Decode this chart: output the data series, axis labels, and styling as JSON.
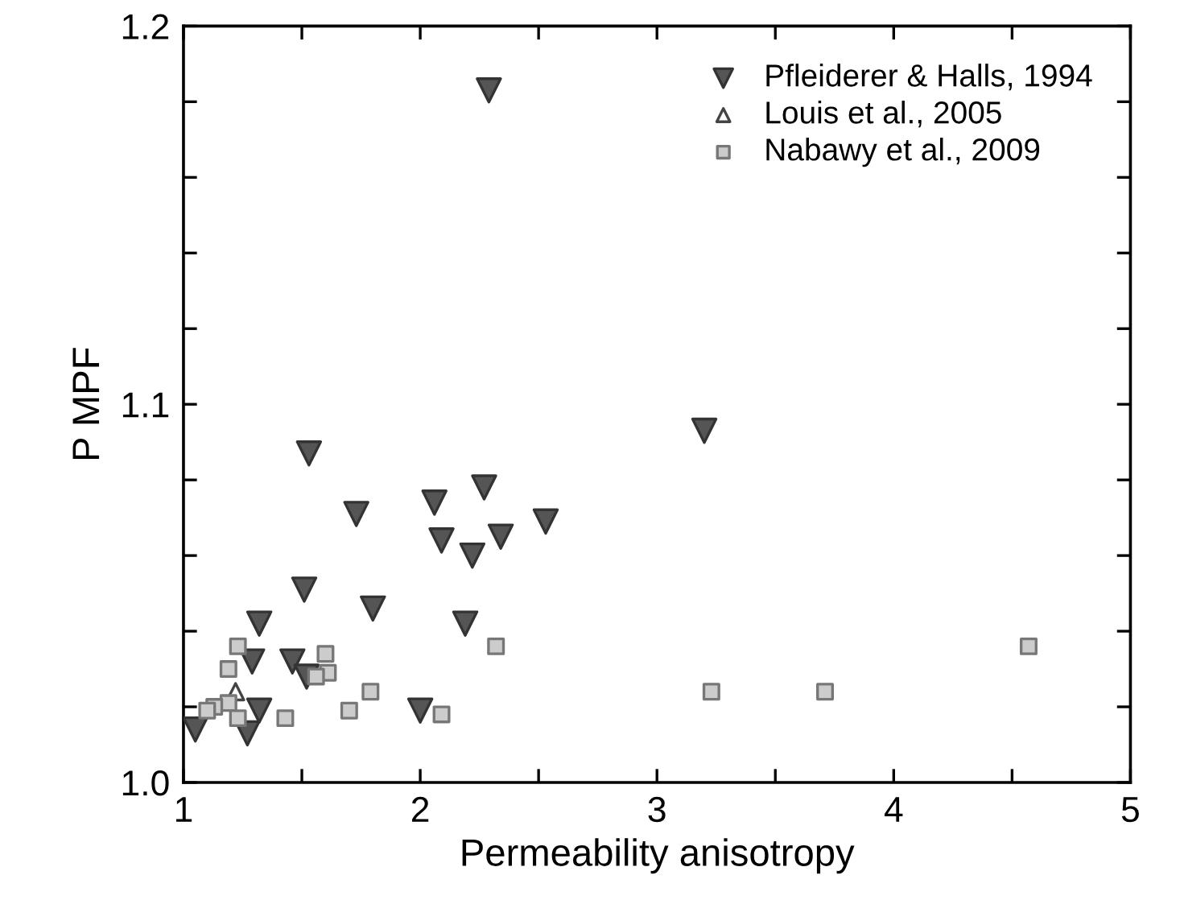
{
  "chart_data": {
    "type": "scatter",
    "xlabel": "Permeability anisotropy",
    "ylabel": "P MPF",
    "xlim": [
      1,
      5
    ],
    "ylim": [
      1.0,
      1.2
    ],
    "xticks": [
      1,
      {
        "value": 1.5,
        "label": null
      },
      2,
      {
        "value": 2.5,
        "label": null
      },
      3,
      {
        "value": 3.5,
        "label": null
      },
      4,
      {
        "value": 4.5,
        "label": null
      },
      5
    ],
    "yticks": [
      {
        "value": 1.0,
        "label": "1.0"
      },
      {
        "value": 1.02,
        "label": null
      },
      {
        "value": 1.04,
        "label": null
      },
      {
        "value": 1.06,
        "label": null
      },
      {
        "value": 1.08,
        "label": null
      },
      {
        "value": 1.1,
        "label": "1.1"
      },
      {
        "value": 1.12,
        "label": null
      },
      {
        "value": 1.14,
        "label": null
      },
      {
        "value": 1.16,
        "label": null
      },
      {
        "value": 1.18,
        "label": null
      },
      {
        "value": 1.2,
        "label": "1.2"
      }
    ],
    "grid": false,
    "legend": "top right",
    "series": [
      {
        "name": "Pfleiderer & Halls, 1994",
        "color": "#555555",
        "marker": "triangle_down",
        "x": [
          2.29,
          3.2,
          1.53,
          1.73,
          2.06,
          2.27,
          2.09,
          2.34,
          2.53,
          2.22,
          1.51,
          1.8,
          1.32,
          2.19,
          1.29,
          1.46,
          1.52,
          1.32,
          2.0,
          1.05,
          1.27
        ],
        "values": [
          1.183,
          1.093,
          1.087,
          1.071,
          1.074,
          1.078,
          1.064,
          1.065,
          1.069,
          1.06,
          1.051,
          1.046,
          1.042,
          1.042,
          1.032,
          1.032,
          1.028,
          1.019,
          1.019,
          1.014,
          1.013
        ]
      },
      {
        "name": "Louis et al., 2005",
        "color": "#ffffff",
        "marker": "triangle",
        "x": [
          1.22
        ],
        "values": [
          1.024
        ]
      },
      {
        "name": "Nabawy et al., 2009",
        "color": "#cccccc",
        "marker": "square",
        "x": [
          1.23,
          1.6,
          1.19,
          1.61,
          1.56,
          1.79,
          1.19,
          1.13,
          1.1,
          1.23,
          1.43,
          1.7,
          2.09,
          2.32,
          3.23,
          3.71,
          4.57
        ],
        "values": [
          1.036,
          1.034,
          1.03,
          1.029,
          1.028,
          1.024,
          1.021,
          1.02,
          1.019,
          1.017,
          1.017,
          1.019,
          1.018,
          1.036,
          1.024,
          1.024,
          1.036
        ]
      }
    ]
  }
}
